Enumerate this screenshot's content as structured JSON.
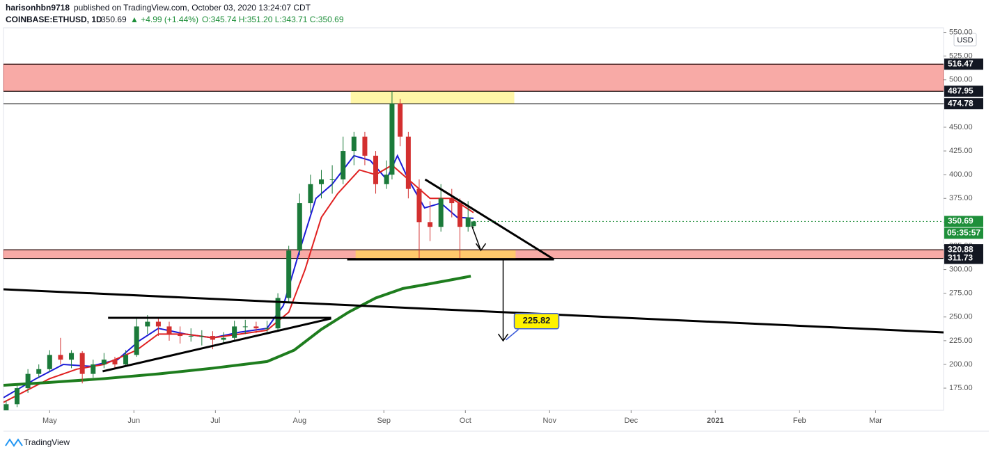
{
  "header": {
    "author": "harisonhbn9718",
    "published": "published on TradingView.com, October 03, 2020 13:24:07 CDT",
    "symbol": "COINBASE:ETHUSD, 1D",
    "last": "350.69",
    "change": "▲ +4.99 (+1.44%)",
    "ohlc": "O:345.74 H:351.20 L:343.71 C:350.69"
  },
  "footer": "TradingView",
  "chart_data": {
    "type": "candlestick",
    "currency": "USD",
    "xlim": [
      -17,
      329
    ],
    "ylim": [
      151.6,
      554.8
    ],
    "xticks": [
      {
        "value": 0,
        "label": "May"
      },
      {
        "value": 31,
        "label": "Jun"
      },
      {
        "value": 61,
        "label": "Jul"
      },
      {
        "value": 92,
        "label": "Aug"
      },
      {
        "value": 123,
        "label": "Sep"
      },
      {
        "value": 153,
        "label": "Oct"
      },
      {
        "value": 184,
        "label": "Nov"
      },
      {
        "value": 214,
        "label": "Dec"
      },
      {
        "value": 245,
        "label": "2021"
      },
      {
        "value": 276,
        "label": "Feb"
      },
      {
        "value": 304,
        "label": "Mar"
      }
    ],
    "yticks": [
      {
        "value": 175,
        "label": "175.00"
      },
      {
        "value": 200,
        "label": "200.00"
      },
      {
        "value": 225,
        "label": "225.00"
      },
      {
        "value": 250,
        "label": "250.00"
      },
      {
        "value": 275,
        "label": "275.00"
      },
      {
        "value": 300,
        "label": "300.00"
      },
      {
        "value": 325,
        "label": "325.00"
      },
      {
        "value": 350,
        "label": "350.00"
      },
      {
        "value": 375,
        "label": "375.00"
      },
      {
        "value": 400,
        "label": "400.00"
      },
      {
        "value": 425,
        "label": "425.00"
      },
      {
        "value": 450,
        "label": "450.00"
      },
      {
        "value": 475,
        "label": "475.00"
      },
      {
        "value": 500,
        "label": "500.00"
      },
      {
        "value": 525,
        "label": "525.00"
      },
      {
        "value": 550,
        "label": "550.00"
      }
    ],
    "up_color": "#1b7a3a",
    "down_color": "#d32f2f",
    "candles": [
      [
        -16,
        150,
        162,
        148,
        158
      ],
      [
        -12,
        158,
        178,
        155,
        175
      ],
      [
        -8,
        175,
        195,
        170,
        190
      ],
      [
        -4,
        190,
        200,
        186,
        195
      ],
      [
        0,
        195,
        215,
        192,
        210
      ],
      [
        4,
        210,
        228,
        200,
        205
      ],
      [
        8,
        205,
        215,
        196,
        212
      ],
      [
        12,
        212,
        214,
        180,
        190
      ],
      [
        16,
        190,
        205,
        186,
        200
      ],
      [
        20,
        200,
        212,
        196,
        205
      ],
      [
        24,
        205,
        208,
        195,
        200
      ],
      [
        28,
        200,
        215,
        198,
        210
      ],
      [
        32,
        210,
        250,
        208,
        240
      ],
      [
        36,
        240,
        252,
        232,
        245
      ],
      [
        40,
        245,
        250,
        230,
        240
      ],
      [
        44,
        240,
        245,
        225,
        232
      ],
      [
        48,
        232,
        240,
        222,
        230
      ],
      [
        52,
        230,
        238,
        224,
        230
      ],
      [
        56,
        230,
        236,
        220,
        230
      ],
      [
        60,
        230,
        235,
        216,
        226
      ],
      [
        64,
        226,
        234,
        222,
        228
      ],
      [
        68,
        228,
        246,
        226,
        240
      ],
      [
        72,
        240,
        247,
        232,
        240
      ],
      [
        76,
        240,
        245,
        233,
        238
      ],
      [
        80,
        238,
        246,
        234,
        238
      ],
      [
        84,
        238,
        275,
        236,
        270
      ],
      [
        88,
        270,
        325,
        265,
        320
      ],
      [
        92,
        320,
        380,
        315,
        370
      ],
      [
        96,
        370,
        400,
        360,
        390
      ],
      [
        100,
        390,
        405,
        375,
        395
      ],
      [
        104,
        395,
        410,
        380,
        395
      ],
      [
        108,
        395,
        440,
        390,
        425
      ],
      [
        112,
        425,
        445,
        410,
        440
      ],
      [
        116,
        440,
        445,
        410,
        420
      ],
      [
        120,
        420,
        425,
        380,
        390
      ],
      [
        124,
        390,
        415,
        385,
        400
      ],
      [
        126,
        400,
        488,
        395,
        475
      ],
      [
        129,
        475,
        480,
        430,
        440
      ],
      [
        132,
        440,
        445,
        375,
        385
      ],
      [
        136,
        385,
        395,
        312,
        350
      ],
      [
        140,
        350,
        372,
        330,
        345
      ],
      [
        144,
        345,
        390,
        340,
        375
      ],
      [
        148,
        375,
        385,
        355,
        370
      ],
      [
        151,
        370,
        375,
        312,
        345
      ],
      [
        154,
        345,
        372,
        340,
        355
      ],
      [
        156,
        345.74,
        351.2,
        343.71,
        350.69
      ]
    ],
    "lines": [
      {
        "color": "#1a1ad6",
        "width": 2,
        "x": [
          -17,
          -5,
          5,
          15,
          25,
          33,
          40,
          50,
          60,
          70,
          80,
          86,
          92,
          98,
          104,
          112,
          118,
          124,
          128,
          132,
          138,
          144,
          150,
          156
        ],
        "values": [
          165,
          185,
          200,
          198,
          205,
          225,
          238,
          232,
          228,
          234,
          238,
          262,
          320,
          375,
          390,
          420,
          415,
          395,
          420,
          395,
          365,
          370,
          355,
          354
        ]
      },
      {
        "color": "#e02020",
        "width": 2,
        "x": [
          -17,
          0,
          10,
          20,
          32,
          40,
          50,
          60,
          70,
          80,
          88,
          94,
          100,
          106,
          114,
          120,
          126,
          132,
          140,
          148,
          156
        ],
        "values": [
          160,
          185,
          195,
          200,
          215,
          232,
          232,
          228,
          232,
          236,
          255,
          300,
          355,
          380,
          405,
          400,
          410,
          395,
          375,
          375,
          360
        ]
      },
      {
        "color": "#1e7d1e",
        "width": 4,
        "x": [
          -17,
          0,
          20,
          40,
          60,
          80,
          90,
          100,
          110,
          120,
          130,
          140,
          155
        ],
        "values": [
          178,
          181,
          185,
          190,
          196,
          203,
          215,
          237,
          255,
          270,
          280,
          285,
          293
        ]
      }
    ],
    "zones": [
      [
        487.95,
        516.47
      ],
      [
        311.73,
        320.88
      ]
    ],
    "levels": [
      516.47,
      487.95,
      474.78,
      320.88,
      311.73
    ],
    "boxes": [
      {
        "x": [
          110.8,
          171
        ],
        "y": [
          474.78,
          487.95
        ],
        "color": "#fff59d"
      },
      {
        "x": [
          112.6,
          171.5
        ],
        "y": [
          310.7,
          320.2
        ],
        "color": "#ffcc66"
      }
    ],
    "drawings": [
      {
        "x": [
          -17,
          329
        ],
        "y": [
          279.2,
          233.7
        ]
      },
      {
        "x": [
          21.5,
          103.6
        ],
        "y": [
          249.1,
          249.1
        ]
      },
      {
        "x": [
          19.5,
          103.6
        ],
        "y": [
          192.7,
          248.4
        ]
      },
      {
        "x": [
          138.2,
          185.6
        ],
        "y": [
          395,
          310.7
        ]
      },
      {
        "x": [
          109.5,
          185.6
        ],
        "y": [
          310.7,
          310.7
        ]
      },
      {
        "x": [
          166.9,
          166.9
        ],
        "y": [
          310.7,
          224.9
        ]
      },
      {
        "x": [
          155.4,
          158.7
        ],
        "y": [
          345.9,
          320.2
        ]
      }
    ],
    "last_price": 350.69,
    "last_color": "#1e8f3a",
    "countdown": "05:35:57",
    "target": {
      "x": 166.9,
      "value": 225.82
    }
  }
}
